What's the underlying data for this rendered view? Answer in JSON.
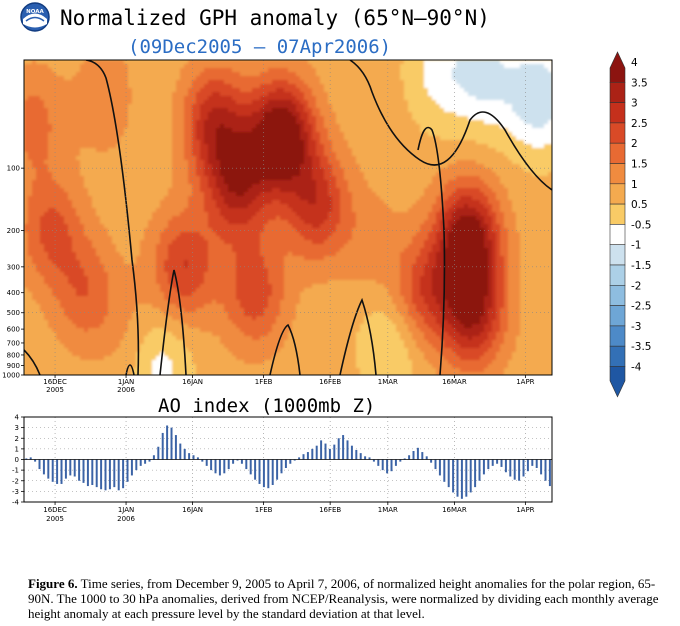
{
  "header": {
    "logo_text": "NOAA",
    "title": "Normalized GPH anomaly (65°N–90°N)",
    "subtitle": "(09Dec2005 – 07Apr2006)"
  },
  "chart_data": [
    {
      "type": "heatmap",
      "title": "Normalized GPH anomaly (65°N–90°N)",
      "subtitle": "(09Dec2005 – 07Apr2006)",
      "x_ticks": [
        {
          "day": 7,
          "label": "16DEC",
          "sub": "2005"
        },
        {
          "day": 23,
          "label": "1JAN",
          "sub": "2006"
        },
        {
          "day": 38,
          "label": "16JAN",
          "sub": ""
        },
        {
          "day": 54,
          "label": "1FEB",
          "sub": ""
        },
        {
          "day": 69,
          "label": "16FEB",
          "sub": ""
        },
        {
          "day": 82,
          "label": "1MAR",
          "sub": ""
        },
        {
          "day": 97,
          "label": "16MAR",
          "sub": ""
        },
        {
          "day": 113,
          "label": "1APR",
          "sub": ""
        }
      ],
      "x_range_days": [
        0,
        119
      ],
      "y_ticks": [
        "100",
        "200",
        "300",
        "400",
        "500",
        "600",
        "700",
        "800",
        "900",
        "1000"
      ],
      "y_tick_values": [
        100,
        200,
        300,
        400,
        500,
        600,
        700,
        800,
        900,
        1000
      ],
      "y_range_hpa": [
        30,
        1000
      ],
      "y_scale": "log",
      "colorbar": {
        "labels": [
          "4",
          "3.5",
          "3",
          "2.5",
          "2",
          "1.5",
          "1",
          "0.5",
          "-0.5",
          "-1",
          "-1.5",
          "-2",
          "-2.5",
          "-3",
          "-3.5",
          "-4"
        ],
        "colors": [
          "#8c1410",
          "#ab2216",
          "#c5301c",
          "#d94a27",
          "#e86a33",
          "#f08b3f",
          "#f4aa4f",
          "#f9cb66",
          "#ffffff",
          "#cde1ee",
          "#acd0e7",
          "#8ebde0",
          "#6ea6d6",
          "#4d8ac8",
          "#3370b6",
          "#1f57a3"
        ]
      },
      "blobs": [
        {
          "day": 58,
          "hpa": 70,
          "value": 3.6
        },
        {
          "day": 48,
          "hpa": 120,
          "value": 2.4
        },
        {
          "day": 66,
          "hpa": 150,
          "value": 2.0
        },
        {
          "day": 43,
          "hpa": 60,
          "value": 2.2
        },
        {
          "day": 36,
          "hpa": 300,
          "value": 1.8
        },
        {
          "day": 52,
          "hpa": 400,
          "value": 1.6
        },
        {
          "day": 100,
          "hpa": 220,
          "value": 3.2
        },
        {
          "day": 101,
          "hpa": 500,
          "value": 2.6
        },
        {
          "day": 90,
          "hpa": 400,
          "value": 1.6
        },
        {
          "day": 6,
          "hpa": 200,
          "value": 1.4
        },
        {
          "day": 14,
          "hpa": 400,
          "value": 1.2
        },
        {
          "day": 2,
          "hpa": 60,
          "value": 1.0
        },
        {
          "day": 20,
          "hpa": 45,
          "value": 1.2
        },
        {
          "day": 116,
          "hpa": 45,
          "value": -1.6
        },
        {
          "day": 104,
          "hpa": 36,
          "value": -1.2
        },
        {
          "day": 94,
          "hpa": 34,
          "value": -0.9
        },
        {
          "day": 30,
          "hpa": 850,
          "value": -1.2
        },
        {
          "day": 83,
          "hpa": 700,
          "value": -0.8
        },
        {
          "day": 23,
          "hpa": 45,
          "value": -0.6
        },
        {
          "day": 78,
          "hpa": 230,
          "value": 0.5
        },
        {
          "day": 26,
          "hpa": 700,
          "value": 0.6
        }
      ]
    },
    {
      "type": "bar",
      "title": "AO index (1000mb Z)",
      "x_ticks": [
        {
          "day": 7,
          "label": "16DEC",
          "sub": "2005"
        },
        {
          "day": 23,
          "label": "1JAN",
          "sub": "2006"
        },
        {
          "day": 38,
          "label": "16JAN",
          "sub": ""
        },
        {
          "day": 54,
          "label": "1FEB",
          "sub": ""
        },
        {
          "day": 69,
          "label": "16FEB",
          "sub": ""
        },
        {
          "day": 82,
          "label": "1MAR",
          "sub": ""
        },
        {
          "day": 97,
          "label": "16MAR",
          "sub": ""
        },
        {
          "day": 113,
          "label": "1APR",
          "sub": ""
        }
      ],
      "y_ticks": [
        "4",
        "3",
        "2",
        "1",
        "0",
        "-1",
        "-2",
        "-3",
        "-4"
      ],
      "ylim": [
        -4,
        4
      ],
      "bar_color": "#3b63a6",
      "values": [
        0.1,
        0.2,
        -0.2,
        -0.9,
        -1.4,
        -1.8,
        -2.1,
        -2.3,
        -2.3,
        -1.8,
        -1.5,
        -1.6,
        -2.0,
        -2.2,
        -2.5,
        -2.4,
        -2.6,
        -2.8,
        -2.9,
        -2.8,
        -2.6,
        -2.9,
        -2.7,
        -2.1,
        -1.5,
        -1.0,
        -0.6,
        -0.4,
        -0.2,
        0.4,
        1.2,
        2.5,
        3.2,
        3.0,
        2.3,
        1.5,
        1.0,
        0.6,
        0.4,
        0.2,
        -0.2,
        -0.6,
        -1.0,
        -1.3,
        -1.5,
        -1.3,
        -0.9,
        -0.4,
        -0.1,
        -0.4,
        -0.9,
        -1.4,
        -1.9,
        -2.3,
        -2.6,
        -2.7,
        -2.4,
        -1.9,
        -1.3,
        -0.8,
        -0.4,
        -0.1,
        0.2,
        0.5,
        0.7,
        1.0,
        1.3,
        1.8,
        1.5,
        1.0,
        1.4,
        2.0,
        2.3,
        1.8,
        1.3,
        0.9,
        0.6,
        0.3,
        0.2,
        -0.2,
        -0.6,
        -1.0,
        -1.3,
        -1.1,
        -0.6,
        -0.2,
        0.1,
        0.4,
        0.8,
        1.1,
        0.7,
        0.3,
        -0.3,
        -0.9,
        -1.5,
        -2.1,
        -2.6,
        -3.1,
        -3.5,
        -3.7,
        -3.5,
        -3.1,
        -2.6,
        -2.0,
        -1.4,
        -0.9,
        -0.6,
        -0.4,
        -0.7,
        -1.2,
        -1.6,
        -1.9,
        -2.0,
        -1.6,
        -1.1,
        -0.6,
        -0.8,
        -1.4,
        -2.0,
        -2.5
      ]
    }
  ],
  "lower_chart_title": "AO index (1000mb Z)",
  "caption": {
    "label": "Figure 6.",
    "text": " Time series, from December 9, 2005 to April 7, 2006, of normalized height anomalies for the polar region, 65-90N.  The 1000 to 30 hPa anomalies, derived from NCEP/Reanalysis, were normalized by dividing each monthly average height anomaly at each pressure level by the standard deviation at that level."
  }
}
